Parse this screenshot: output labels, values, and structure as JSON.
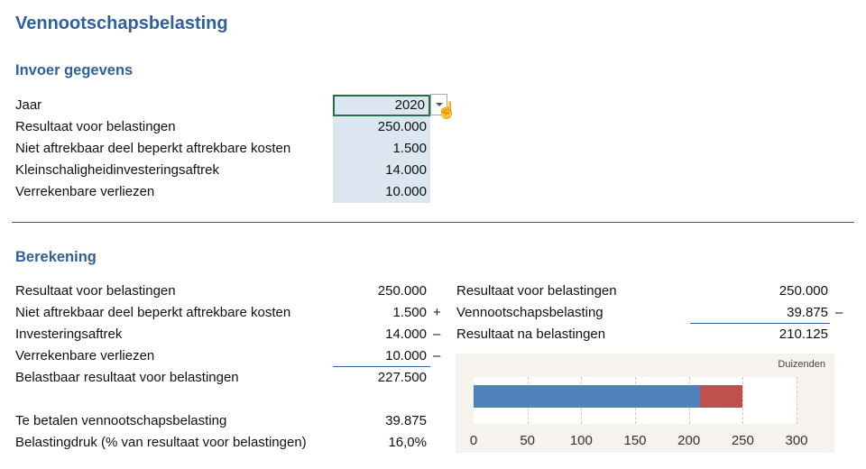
{
  "title": "Vennootschapsbelasting",
  "input": {
    "heading": "Invoer gegevens",
    "rows": [
      {
        "label": "Jaar",
        "value": "2020"
      },
      {
        "label": "Resultaat voor belastingen",
        "value": "250.000"
      },
      {
        "label": "Niet aftrekbaar deel beperkt aftrekbare kosten",
        "value": "1.500"
      },
      {
        "label": "Kleinschaligheidinvesteringsaftrek",
        "value": "14.000"
      },
      {
        "label": "Verrekenbare verliezen",
        "value": "10.000"
      }
    ]
  },
  "calc": {
    "heading": "Berekening",
    "rows": [
      {
        "label": "Resultaat voor belastingen",
        "value": "250.000",
        "sign": ""
      },
      {
        "label": "Niet aftrekbaar deel beperkt aftrekbare kosten",
        "value": "1.500",
        "sign": "+"
      },
      {
        "label": "Investeringsaftrek",
        "value": "14.000",
        "sign": "–"
      },
      {
        "label": "Verrekenbare verliezen",
        "value": "10.000",
        "sign": "–"
      },
      {
        "label": "Belastbaar resultaat voor belastingen",
        "value": "227.500",
        "sign": ""
      },
      {
        "label": "Te betalen vennootschapsbelasting",
        "value": "39.875",
        "sign": ""
      },
      {
        "label": "Belastingdruk (% van resultaat voor belastingen)",
        "value": "16,0%",
        "sign": ""
      }
    ],
    "right": [
      {
        "label": "Resultaat voor belastingen",
        "value": "250.000",
        "sign": ""
      },
      {
        "label": "Vennootschapsbelasting",
        "value": "39.875",
        "sign": "–"
      },
      {
        "label": "Resultaat na belastingen",
        "value": "210.125",
        "sign": ""
      }
    ]
  },
  "chart_data": {
    "type": "bar",
    "orientation": "horizontal",
    "stacked": true,
    "unit_label": "Duizenden",
    "series": [
      {
        "name": "Resultaat na belastingen",
        "values": [
          210.125
        ],
        "color": "#4f81bd"
      },
      {
        "name": "Vennootschapsbelasting",
        "values": [
          39.875
        ],
        "color": "#c0504d"
      }
    ],
    "xlim": [
      0,
      300
    ],
    "ticks": [
      "0",
      "50",
      "100",
      "150",
      "200",
      "250",
      "300"
    ],
    "grid": true
  }
}
